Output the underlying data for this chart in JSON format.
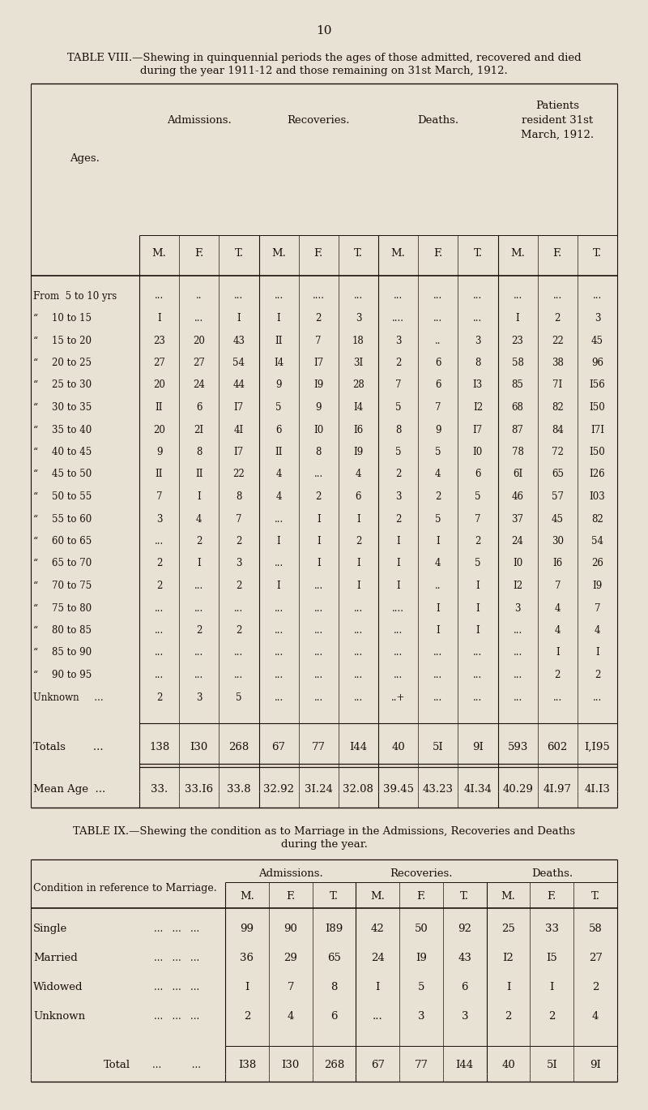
{
  "page_number": "10",
  "bg_color": "#e8e2d4",
  "table8_title_line1": "TABLE VIII.—Shewing in quinquennial periods the ages of those admitted, recovered and died",
  "table8_title_line2": "during the year 1911-12 and those remaining on 31st March, 1912.",
  "table8_rows": [
    {
      "age": "From  5 to 10 yrs",
      "indent": false,
      "vals": [
        "...",
        "..",
        "...",
        "...",
        "....",
        "...",
        "...",
        "...",
        "...",
        "...",
        "...",
        "..."
      ]
    },
    {
      "age": "\"  10 to 15  \"",
      "indent": true,
      "vals": [
        "I",
        "...",
        "I",
        "I",
        "2",
        "3",
        "....",
        "...",
        "...",
        "I",
        "2",
        "3"
      ]
    },
    {
      "age": "\"  15 to 20  \"",
      "indent": true,
      "vals": [
        "23",
        "20",
        "43",
        "II",
        "7",
        "18",
        "3",
        "..",
        "3",
        "23",
        "22",
        "45"
      ]
    },
    {
      "age": "\"  20 to 25  \"",
      "indent": true,
      "vals": [
        "27",
        "27",
        "54",
        "I4",
        "I7",
        "3I",
        "2",
        "6",
        "8",
        "58",
        "38",
        "96"
      ]
    },
    {
      "age": "\"  25 to 30  \"",
      "indent": true,
      "vals": [
        "20",
        "24",
        "44",
        "9",
        "I9",
        "28",
        "7",
        "6",
        "I3",
        "85",
        "7I",
        "I56"
      ]
    },
    {
      "age": "\"  30 to 35  \"",
      "indent": true,
      "vals": [
        "II",
        "6",
        "I7",
        "5",
        "9",
        "I4",
        "5",
        "7",
        "I2",
        "68",
        "82",
        "I50"
      ]
    },
    {
      "age": "\"  35 to 40  \"",
      "indent": true,
      "vals": [
        "20",
        "2I",
        "4I",
        "6",
        "I0",
        "I6",
        "8",
        "9",
        "I7",
        "87",
        "84",
        "I7I"
      ]
    },
    {
      "age": "\"  40 to 45  \"",
      "indent": true,
      "vals": [
        "9",
        "8",
        "I7",
        "II",
        "8",
        "I9",
        "5",
        "5",
        "I0",
        "78",
        "72",
        "I50"
      ]
    },
    {
      "age": "\"  45 to 50  \"",
      "indent": true,
      "vals": [
        "II",
        "II",
        "22",
        "4",
        "...",
        "4",
        "2",
        "4",
        "6",
        "6I",
        "65",
        "I26"
      ]
    },
    {
      "age": "\"  50 to 55  \"",
      "indent": true,
      "vals": [
        "7",
        "I",
        "8",
        "4",
        "2",
        "6",
        "3",
        "2",
        "5",
        "46",
        "57",
        "I03"
      ]
    },
    {
      "age": "\"  55 to 60  \"",
      "indent": true,
      "vals": [
        "3",
        "4",
        "7",
        "...",
        "I",
        "I",
        "2",
        "5",
        "7",
        "37",
        "45",
        "82"
      ]
    },
    {
      "age": "\"  60 to 65  \"",
      "indent": true,
      "vals": [
        "...",
        "2",
        "2",
        "I",
        "I",
        "2",
        "I",
        "I",
        "2",
        "24",
        "30",
        "54"
      ]
    },
    {
      "age": "\"  65 to 70  \"",
      "indent": true,
      "vals": [
        "2",
        "I",
        "3",
        "...",
        "I",
        "I",
        "I",
        "4",
        "5",
        "I0",
        "I6",
        "26"
      ]
    },
    {
      "age": "\"  70 to 75  \"",
      "indent": true,
      "vals": [
        "2",
        "...",
        "2",
        "I",
        "...",
        "I",
        "I",
        "..",
        "I",
        "I2",
        "7",
        "I9"
      ]
    },
    {
      "age": "\"  75 to 80  \"",
      "indent": true,
      "vals": [
        "...",
        "...",
        "...",
        "...",
        "...",
        "...",
        "....",
        "I",
        "I",
        "3",
        "4",
        "7"
      ]
    },
    {
      "age": "\"  80 to 85  \"",
      "indent": true,
      "vals": [
        "...",
        "2",
        "2",
        "...",
        "...",
        "...",
        "...",
        "I",
        "I",
        "...",
        "4",
        "4"
      ]
    },
    {
      "age": "\"  85 to 90  \"",
      "indent": true,
      "vals": [
        "...",
        "...",
        "...",
        "...",
        "...",
        "...",
        "...",
        "...",
        "...",
        "...",
        "I",
        "I"
      ]
    },
    {
      "age": "\"  90 to 95  \"",
      "indent": true,
      "vals": [
        "...",
        "...",
        "...",
        "...",
        "...",
        "...",
        "...",
        "...",
        "...",
        "...",
        "2",
        "2"
      ]
    },
    {
      "age": "Unknown     ...",
      "indent": false,
      "vals": [
        "2",
        "3",
        "5",
        "...",
        "...",
        "...",
        "..+",
        "...",
        "...",
        "...",
        "...",
        "..."
      ]
    }
  ],
  "table8_totals_vals": [
    "138",
    "I30",
    "268",
    "67",
    "77",
    "I44",
    "40",
    "5I",
    "9I",
    "593",
    "602",
    "I,I95"
  ],
  "table8_mean_vals": [
    "33.",
    "33.I6",
    "33.8",
    "32.92",
    "3I.24",
    "32.08",
    "39.45",
    "43.23",
    "4I.34",
    "40.29",
    "4I.97",
    "4I.I3"
  ],
  "table9_title_line1": "TABLE IX.—Shewing the condition as to Marriage in the Admissions, Recoveries and Deaths",
  "table9_title_line2": "during the year.",
  "table9_rows": [
    {
      "cond": "Single",
      "dots": "...   ...   ...",
      "vals": [
        "99",
        "90",
        "I89",
        "42",
        "50",
        "92",
        "25",
        "33",
        "58"
      ]
    },
    {
      "cond": "Married",
      "dots": "...   ...   ...",
      "vals": [
        "36",
        "29",
        "65",
        "24",
        "I9",
        "43",
        "I2",
        "I5",
        "27"
      ]
    },
    {
      "cond": "Widowed",
      "dots": "...   ...   ...",
      "vals": [
        "I",
        "7",
        "8",
        "I",
        "5",
        "6",
        "I",
        "I",
        "2"
      ]
    },
    {
      "cond": "Unknown",
      "dots": "...   ...   ...",
      "vals": [
        "2",
        "4",
        "6",
        "...",
        "3",
        "3",
        "2",
        "2",
        "4"
      ]
    }
  ],
  "table9_total_vals": [
    "I38",
    "I30",
    "268",
    "67",
    "77",
    "I44",
    "40",
    "5I",
    "9I"
  ]
}
